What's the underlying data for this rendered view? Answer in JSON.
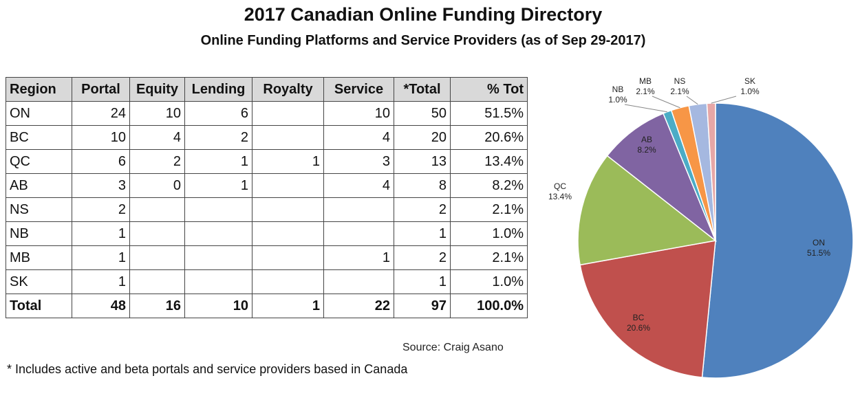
{
  "title": "2017 Canadian Online Funding Directory",
  "subtitle": "Online Funding Platforms and Service Providers (as of Sep 29-2017)",
  "table": {
    "headers": [
      "Region",
      "Portal",
      "Equity",
      "Lending",
      "Royalty",
      "Service",
      "*Total",
      "% Tot"
    ],
    "rows": [
      [
        "ON",
        "24",
        "10",
        "6",
        "",
        "10",
        "50",
        "51.5%"
      ],
      [
        "BC",
        "10",
        "4",
        "2",
        "",
        "4",
        "20",
        "20.6%"
      ],
      [
        "QC",
        "6",
        "2",
        "1",
        "1",
        "3",
        "13",
        "13.4%"
      ],
      [
        "AB",
        "3",
        "0",
        "1",
        "",
        "4",
        "8",
        "8.2%"
      ],
      [
        "NS",
        "2",
        "",
        "",
        "",
        "",
        "2",
        "2.1%"
      ],
      [
        "NB",
        "1",
        "",
        "",
        "",
        "",
        "1",
        "1.0%"
      ],
      [
        "MB",
        "1",
        "",
        "",
        "",
        "1",
        "2",
        "2.1%"
      ],
      [
        "SK",
        "1",
        "",
        "",
        "",
        "",
        "1",
        "1.0%"
      ]
    ],
    "total": [
      "Total",
      "48",
      "16",
      "10",
      "1",
      "22",
      "97",
      "100.0%"
    ]
  },
  "source": "Source:  Craig Asano",
  "footnote": "* Includes active and beta portals and service providers based in Canada",
  "chart_data": {
    "type": "pie",
    "slices": [
      {
        "label": "ON",
        "pct_label": "51.5%",
        "value": 51.5,
        "color": "#4f81bd"
      },
      {
        "label": "BC",
        "pct_label": "20.6%",
        "value": 20.6,
        "color": "#c0504d"
      },
      {
        "label": "QC",
        "pct_label": "13.4%",
        "value": 13.4,
        "color": "#9bbb59"
      },
      {
        "label": "AB",
        "pct_label": "8.2%",
        "value": 8.2,
        "color": "#8064a2"
      },
      {
        "label": "NB",
        "pct_label": "1.0%",
        "value": 1.0,
        "color": "#4bacc6"
      },
      {
        "label": "MB",
        "pct_label": "2.1%",
        "value": 2.1,
        "color": "#f79646"
      },
      {
        "label": "NS",
        "pct_label": "2.1%",
        "value": 2.1,
        "color": "#a5b8e0"
      },
      {
        "label": "SK",
        "pct_label": "1.0%",
        "value": 1.0,
        "color": "#e6a7a7"
      }
    ],
    "start_angle_deg": 0,
    "direction": "clockwise"
  }
}
